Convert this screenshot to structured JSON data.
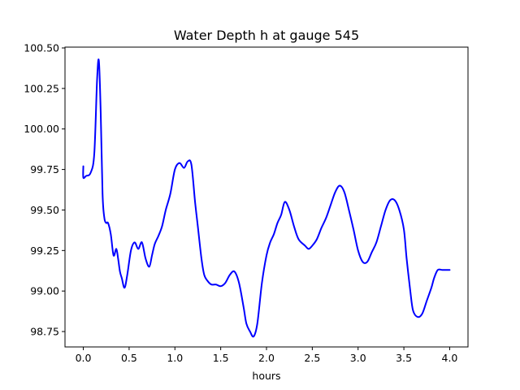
{
  "chart_data": {
    "type": "line",
    "title": "Water Depth h at gauge 545",
    "xlabel": "hours",
    "ylabel": "",
    "xlim": [
      -0.2,
      4.2
    ],
    "ylim": [
      98.655,
      100.505
    ],
    "grid": false,
    "xticks": [
      0.0,
      0.5,
      1.0,
      1.5,
      2.0,
      2.5,
      3.0,
      3.5,
      4.0
    ],
    "xtick_labels": [
      "0.0",
      "0.5",
      "1.0",
      "1.5",
      "2.0",
      "2.5",
      "3.0",
      "3.5",
      "4.0"
    ],
    "yticks": [
      98.75,
      99.0,
      99.25,
      99.5,
      99.75,
      100.0,
      100.25,
      100.5
    ],
    "ytick_labels": [
      "98.75",
      "99.00",
      "99.25",
      "99.50",
      "99.75",
      "100.00",
      "100.25",
      "100.50"
    ],
    "series": [
      {
        "color": "#0000ff",
        "x": [
          0.0,
          0.0,
          0.03,
          0.08,
          0.12,
          0.15,
          0.17,
          0.19,
          0.21,
          0.23,
          0.25,
          0.27,
          0.3,
          0.33,
          0.36,
          0.38,
          0.4,
          0.42,
          0.45,
          0.48,
          0.52,
          0.56,
          0.6,
          0.64,
          0.68,
          0.72,
          0.75,
          0.78,
          0.82,
          0.86,
          0.9,
          0.95,
          1.0,
          1.05,
          1.1,
          1.14,
          1.18,
          1.22,
          1.25,
          1.29,
          1.32,
          1.36,
          1.4,
          1.45,
          1.5,
          1.55,
          1.6,
          1.65,
          1.7,
          1.75,
          1.78,
          1.82,
          1.86,
          1.9,
          1.95,
          2.0,
          2.04,
          2.08,
          2.12,
          2.16,
          2.2,
          2.25,
          2.3,
          2.35,
          2.42,
          2.46,
          2.5,
          2.55,
          2.6,
          2.65,
          2.7,
          2.75,
          2.8,
          2.85,
          2.9,
          2.95,
          3.0,
          3.05,
          3.1,
          3.15,
          3.2,
          3.25,
          3.3,
          3.35,
          3.4,
          3.45,
          3.5,
          3.53,
          3.57,
          3.6,
          3.65,
          3.7,
          3.75,
          3.8,
          3.83,
          3.87,
          3.92,
          3.96,
          4.0
        ],
        "y": [
          99.77,
          99.7,
          99.71,
          99.73,
          99.85,
          100.3,
          100.42,
          100.1,
          99.6,
          99.45,
          99.42,
          99.42,
          99.35,
          99.22,
          99.26,
          99.2,
          99.12,
          99.08,
          99.02,
          99.1,
          99.25,
          99.3,
          99.26,
          99.3,
          99.2,
          99.15,
          99.22,
          99.29,
          99.34,
          99.4,
          99.5,
          99.6,
          99.75,
          99.79,
          99.76,
          99.8,
          99.78,
          99.55,
          99.4,
          99.2,
          99.1,
          99.06,
          99.04,
          99.04,
          99.03,
          99.05,
          99.1,
          99.12,
          99.05,
          98.9,
          98.8,
          98.75,
          98.72,
          98.8,
          99.05,
          99.22,
          99.3,
          99.35,
          99.42,
          99.47,
          99.55,
          99.5,
          99.4,
          99.32,
          99.28,
          99.26,
          99.28,
          99.32,
          99.39,
          99.45,
          99.53,
          99.61,
          99.65,
          99.61,
          99.5,
          99.38,
          99.25,
          99.18,
          99.18,
          99.24,
          99.3,
          99.4,
          99.5,
          99.56,
          99.56,
          99.5,
          99.38,
          99.2,
          99.0,
          98.88,
          98.84,
          98.86,
          98.94,
          99.02,
          99.08,
          99.13,
          99.13,
          99.13,
          99.13
        ]
      }
    ]
  }
}
